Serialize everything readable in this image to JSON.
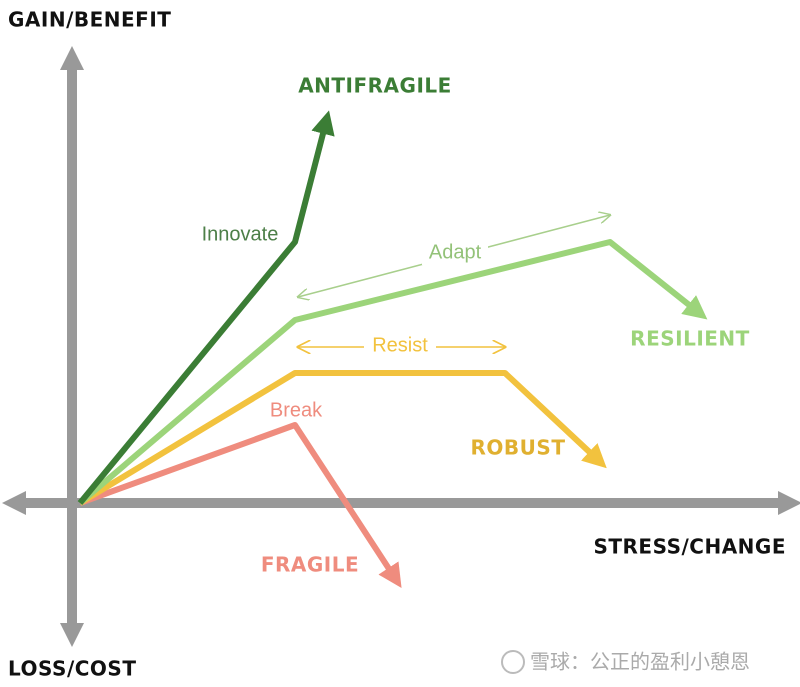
{
  "axes": {
    "y_top": "GAIN/BENEFIT",
    "y_bottom": "LOSS/COST",
    "x_right": "STRESS/CHANGE"
  },
  "curves": [
    {
      "label": "ANTIFRAGILE",
      "annotation": "Innovate"
    },
    {
      "label": "RESILIENT",
      "annotation": "Adapt"
    },
    {
      "label": "ROBUST",
      "annotation": "Resist"
    },
    {
      "label": "FRAGILE",
      "annotation": "Break"
    }
  ],
  "watermark": "雪球：公正的盈利小憩恩"
}
